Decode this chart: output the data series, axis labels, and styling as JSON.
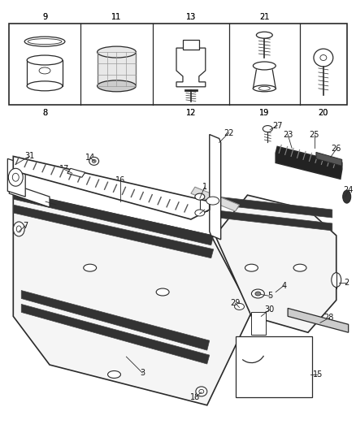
{
  "bg_color": "#ffffff",
  "line_color": "#2a2a2a",
  "fig_width": 4.38,
  "fig_height": 5.33,
  "dpi": 100
}
